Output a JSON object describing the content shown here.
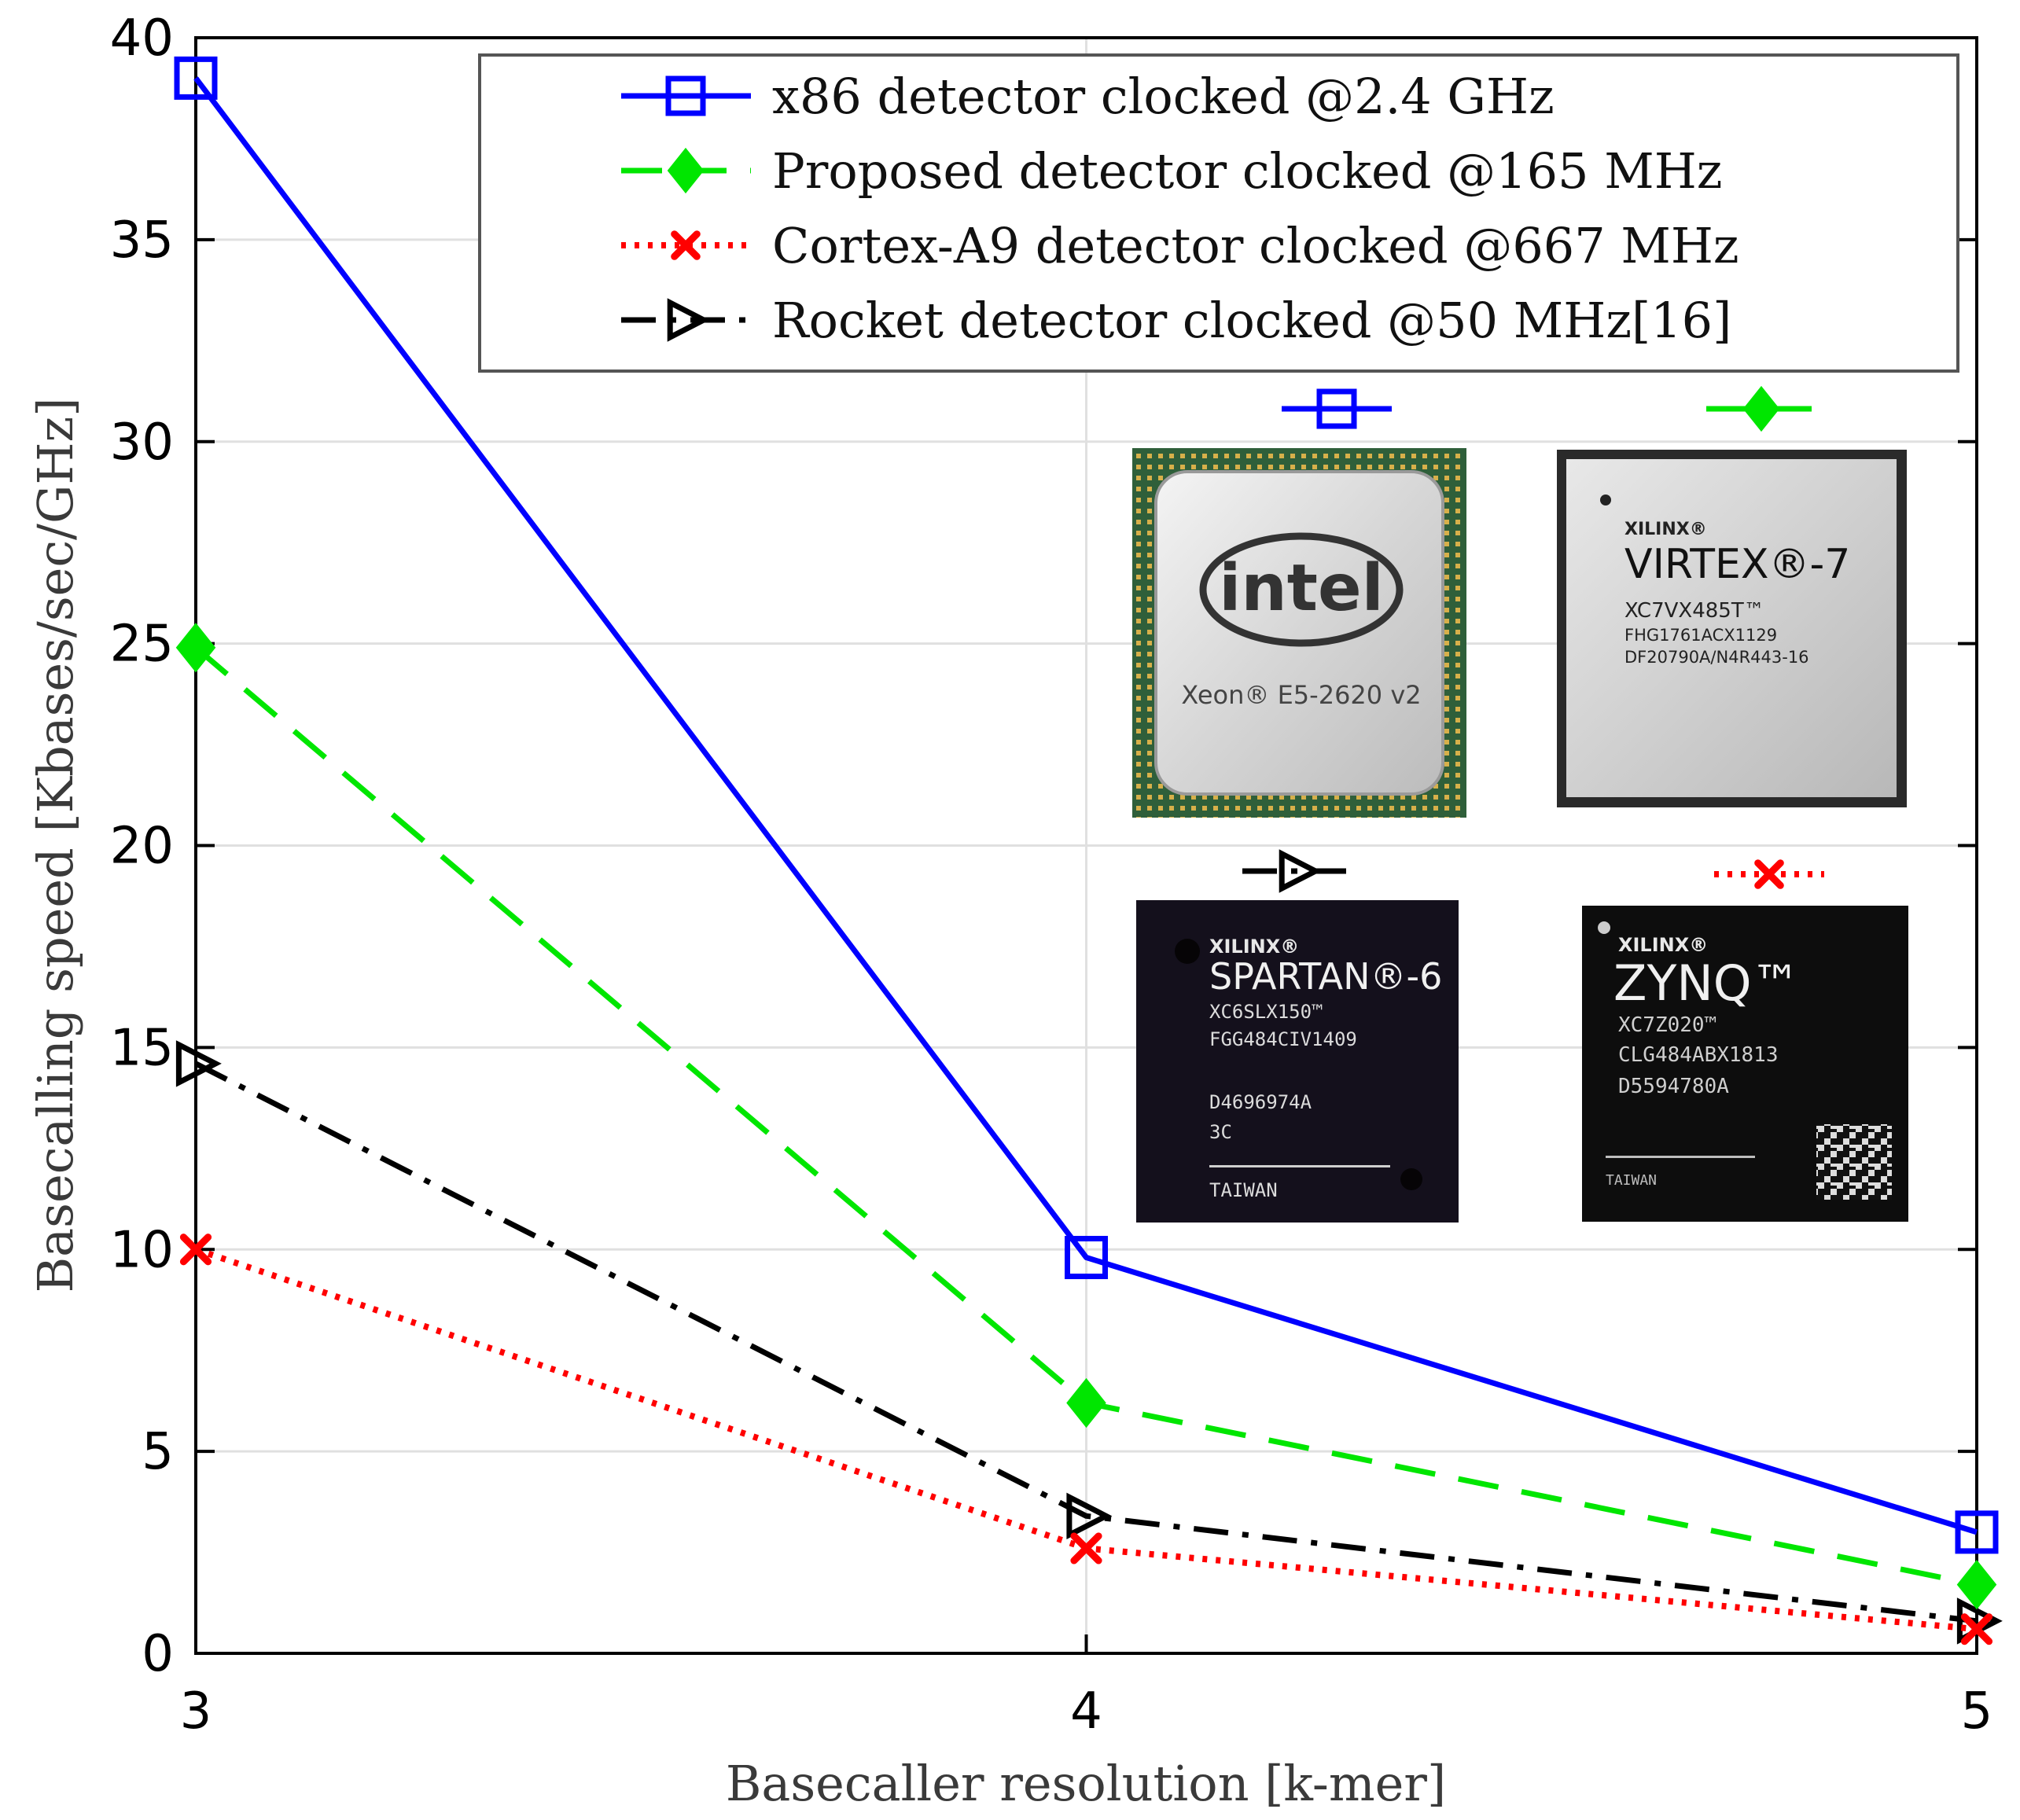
{
  "chart_data": {
    "type": "line",
    "title": "",
    "xlabel": "Basecaller resolution [k-mer]",
    "ylabel": "Basecalling speed [Kbases/sec/GHz]",
    "x": [
      3,
      4,
      5
    ],
    "xlim": [
      3,
      5
    ],
    "ylim": [
      0,
      40
    ],
    "xticks": [
      "3",
      "4",
      "5"
    ],
    "yticks": [
      "0",
      "5",
      "10",
      "15",
      "20",
      "25",
      "30",
      "35",
      "40"
    ],
    "grid": true,
    "legend_position": "top-right",
    "series": [
      {
        "name": "x86 detector clocked @2.4 GHz",
        "values": [
          39.0,
          9.8,
          3.0
        ],
        "color": "#0000ff",
        "marker": "square",
        "style": "solid"
      },
      {
        "name": "Proposed detector clocked @165 MHz",
        "values": [
          24.9,
          6.2,
          1.7
        ],
        "color": "#00e600",
        "marker": "diamond",
        "style": "dashed"
      },
      {
        "name": "Cortex-A9 detector clocked @667 MHz",
        "values": [
          10.0,
          2.6,
          0.6
        ],
        "color": "#ff0000",
        "marker": "x",
        "style": "dotted"
      },
      {
        "name": "Rocket detector clocked @50 MHz[16]",
        "values": [
          14.6,
          3.4,
          0.8
        ],
        "color": "#000000",
        "marker": "triangle-right",
        "style": "dashdot"
      }
    ]
  },
  "chips": {
    "intel": {
      "logo": "intel",
      "model": "Xeon® E5-2620 v2"
    },
    "virtex": {
      "brand": "XILINX®",
      "family": "VIRTEX®-7",
      "line1": "XC7VX485T™",
      "line2": "FHG1761ACX1129",
      "line3": "DF20790A/N4R443-16"
    },
    "spartan": {
      "brand": "XILINX®",
      "family": "SPARTAN®-6",
      "line1": "XC6SLX150™",
      "line2": "FGG484CIV1409",
      "line3": "D4696974A",
      "line4": "3C",
      "line5": "TAIWAN"
    },
    "zynq": {
      "brand": "XILINX®",
      "family": "ZYNQ™",
      "line1": "XC7Z020™",
      "line2": "CLG484ABX1813",
      "line3": "D5594780A",
      "line4": "TAIWAN"
    }
  },
  "colors": {
    "axis": "#000000",
    "grid": "#e0e0e0",
    "label": "#3a3a3a"
  }
}
